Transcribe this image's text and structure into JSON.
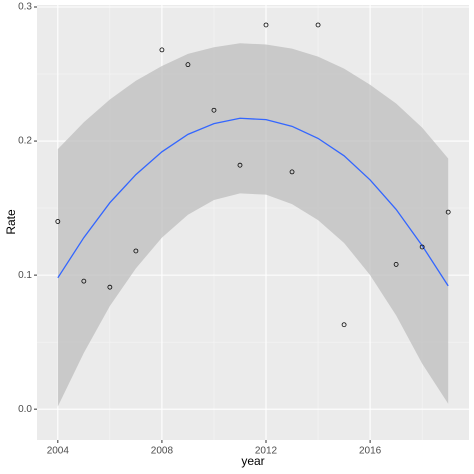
{
  "chart_data": {
    "type": "scatter",
    "x_label": "year",
    "y_label": "Rate",
    "x": [
      2004,
      2005,
      2006,
      2007,
      2008,
      2009,
      2010,
      2011,
      2012,
      2013,
      2014,
      2015,
      2017,
      2018,
      2019
    ],
    "series": [
      {
        "color": "#000000",
        "values": [
          0.14,
          0.0955,
          0.091,
          0.118,
          0.268,
          0.257,
          0.223,
          0.182,
          0.2866,
          0.177,
          0.2866,
          0.063,
          0.108,
          0.121,
          0.147
        ]
      }
    ],
    "smooth": {
      "color": "#3366ff",
      "band_color": "#bebebe",
      "x": [
        2004,
        2005,
        2006,
        2007,
        2008,
        2009,
        2010,
        2011,
        2012,
        2013,
        2014,
        2015,
        2016,
        2017,
        2018,
        2019
      ],
      "values": [
        0.098,
        0.128,
        0.154,
        0.175,
        0.192,
        0.205,
        0.213,
        0.217,
        0.216,
        0.211,
        0.202,
        0.189,
        0.171,
        0.149,
        0.122,
        0.092
      ],
      "upper": [
        0.194,
        0.214,
        0.231,
        0.245,
        0.256,
        0.265,
        0.27,
        0.273,
        0.272,
        0.269,
        0.263,
        0.254,
        0.242,
        0.228,
        0.21,
        0.187
      ],
      "lower": [
        0.002,
        0.042,
        0.077,
        0.105,
        0.128,
        0.145,
        0.156,
        0.161,
        0.16,
        0.153,
        0.141,
        0.124,
        0.1,
        0.07,
        0.034,
        0.004
      ]
    },
    "xlim": [
      2003.2,
      2019.8
    ],
    "ylim": [
      -0.023,
      0.3015
    ],
    "xticks": [
      2004,
      2008,
      2012,
      2016
    ],
    "yticks": [
      {
        "value": 0,
        "label": "0.0"
      },
      0.1,
      0.2,
      0.3
    ],
    "xminor": [
      2006,
      2010,
      2014,
      2018
    ],
    "yminor": [
      0.05,
      0.15,
      0.25
    ],
    "grid": true
  }
}
